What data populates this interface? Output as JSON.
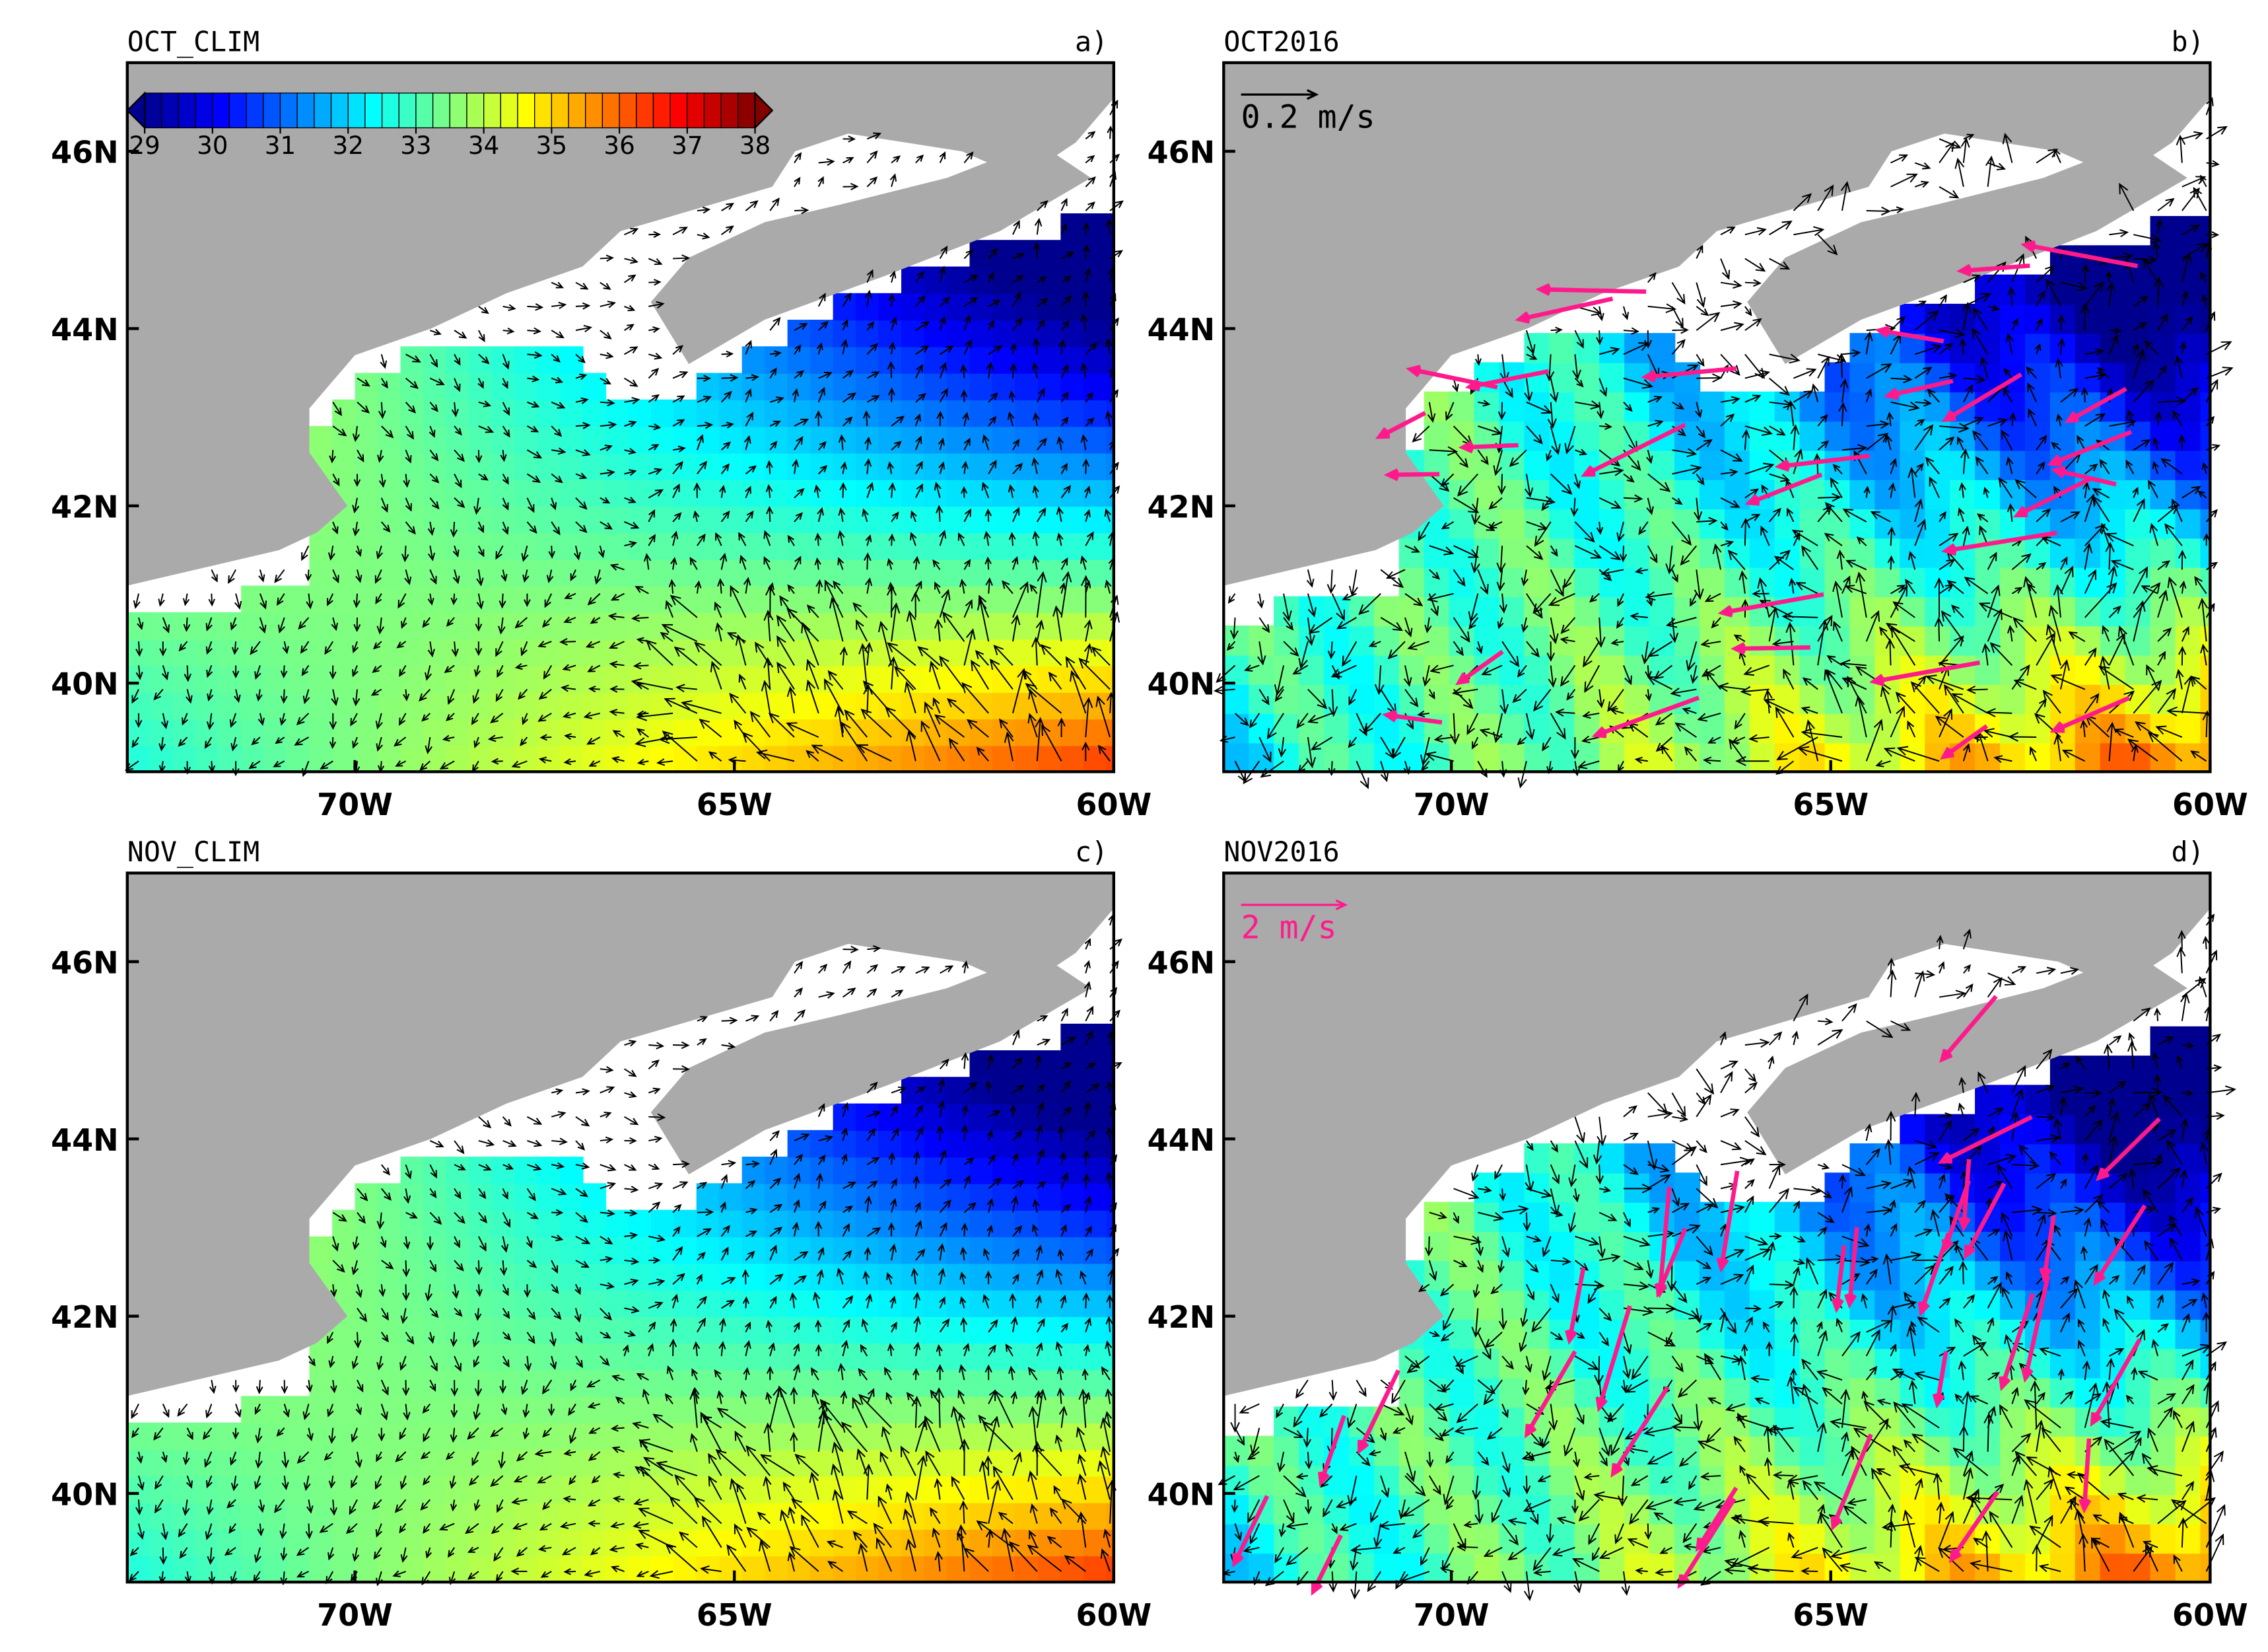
{
  "panels": [
    {
      "title": "OCT_CLIM",
      "letter": "a)"
    },
    {
      "title": "OCT2016",
      "letter": "b)",
      "ref_vector": "0.2 m/s"
    },
    {
      "title": "NOV_CLIM",
      "letter": "c)"
    },
    {
      "title": "NOV2016",
      "letter": "d)",
      "ref_vector": "2 m/s"
    }
  ],
  "map": {
    "xlim": [
      -73,
      -60
    ],
    "ylim": [
      39,
      47
    ],
    "xticks": [
      {
        "value": -70,
        "label": "70W"
      },
      {
        "value": -65,
        "label": "65W"
      },
      {
        "value": -60,
        "label": "60W"
      }
    ],
    "yticks": [
      {
        "value": 40,
        "label": "40N"
      },
      {
        "value": 42,
        "label": "42N"
      },
      {
        "value": 44,
        "label": "44N"
      },
      {
        "value": 46,
        "label": "46N"
      }
    ]
  },
  "colorbar": {
    "ticks": [
      29,
      30,
      31,
      32,
      33,
      34,
      35,
      36,
      37,
      38
    ],
    "colors": [
      "#00008f",
      "#0000ff",
      "#0080ff",
      "#00ffff",
      "#80ff80",
      "#ffff00",
      "#ff8000",
      "#ff0000",
      "#800000"
    ]
  }
}
